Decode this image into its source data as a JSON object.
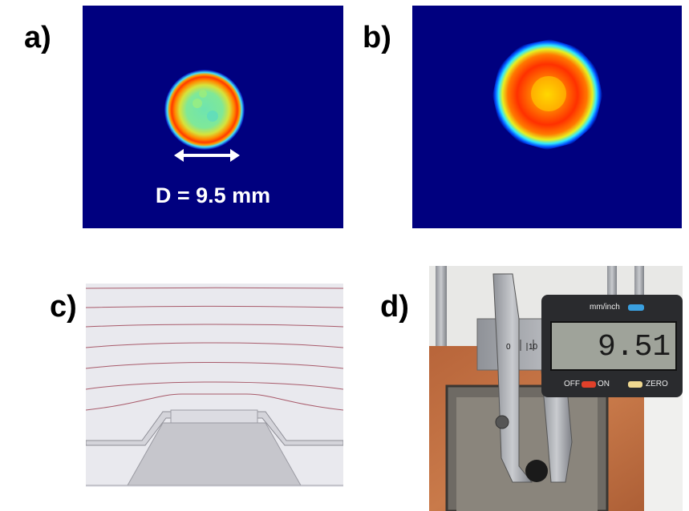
{
  "labels": {
    "a": "a)",
    "b": "b)",
    "c": "c)",
    "d": "d)"
  },
  "panel_a": {
    "dimension_text": "D = 9.5 mm"
  },
  "panel_d": {
    "unit_button": "mm/inch",
    "off_on_label": "OFF",
    "on_label": "ON",
    "zero_label": "ZERO",
    "display_reading": "9.51",
    "scale_numbers": [
      "0",
      "10"
    ]
  },
  "colors": {
    "heatmap_bg": "#00007f",
    "hot": "#ff2a00",
    "sim_bg": "#ececf0"
  }
}
